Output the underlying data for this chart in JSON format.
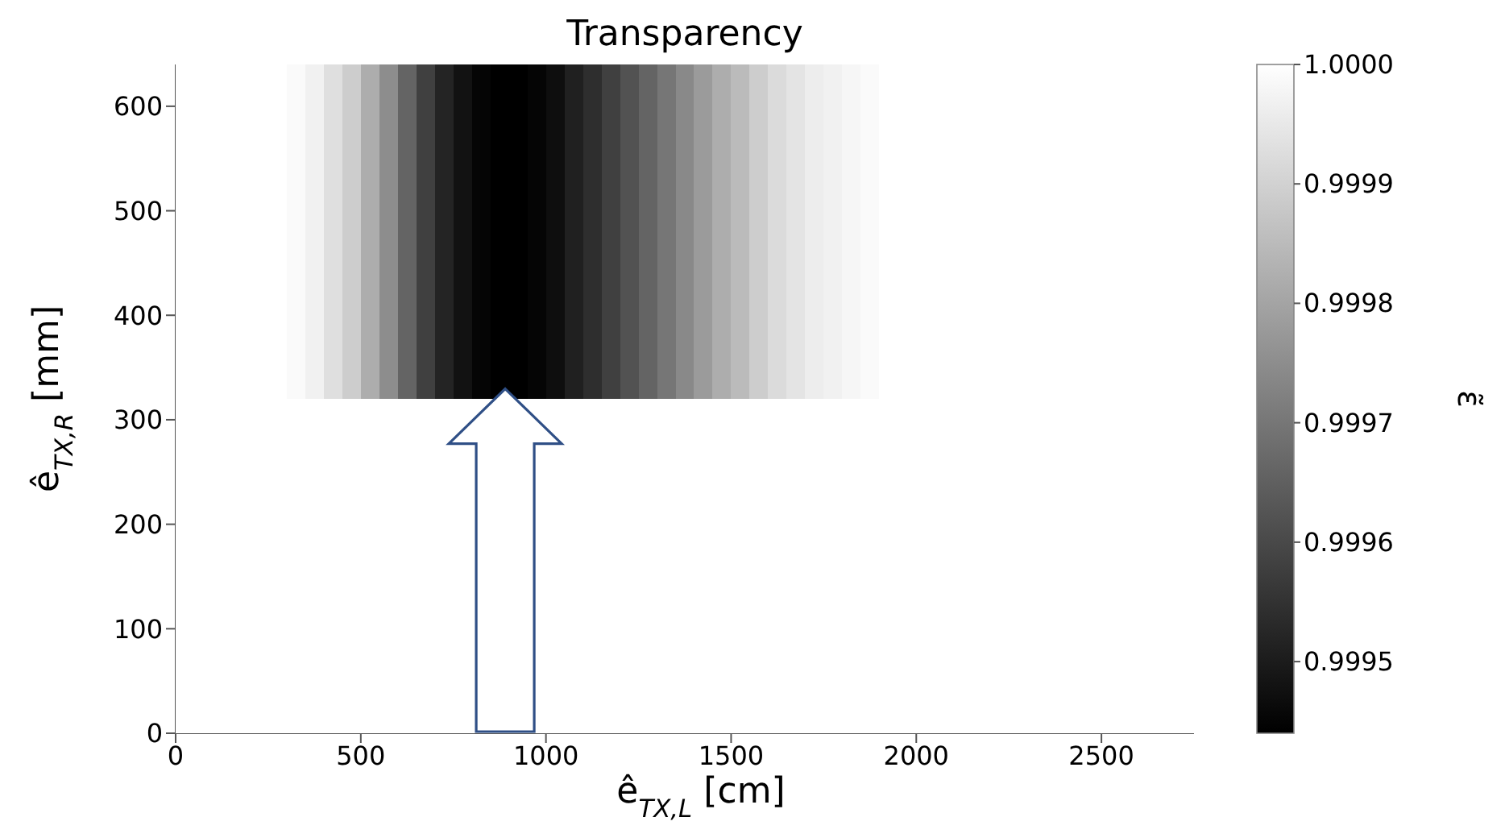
{
  "chart_data": {
    "type": "heatmap",
    "title": "Transparency",
    "xlabel": "ê$_{TX,L}$ [cm]",
    "ylabel": "ê$_{TX,R}$ [mm]",
    "clabel": "ε̃",
    "x": [
      25,
      75,
      125,
      175,
      225,
      275,
      325,
      375,
      425,
      475,
      525,
      575,
      625,
      675,
      725,
      775,
      825,
      875,
      925,
      975,
      1025,
      1075,
      1125,
      1175,
      1225,
      1275,
      1325,
      1375,
      1425,
      1475,
      1525,
      1575,
      1625,
      1675,
      1725,
      1775,
      1825,
      1875,
      1925,
      1975,
      2025,
      2075,
      2125,
      2175,
      2225,
      2275,
      2325,
      2375,
      2425,
      2475,
      2525,
      2575,
      2625,
      2675,
      2725
    ],
    "y": [
      480,
      160
    ],
    "cells": [
      [
        1,
        1,
        1,
        1,
        1,
        1,
        0.99999,
        0.99997,
        0.99993,
        0.99989,
        0.99982,
        0.99975,
        0.99966,
        0.99958,
        0.99952,
        0.99948,
        0.99945,
        0.99944,
        0.99944,
        0.99945,
        0.99947,
        0.99951,
        0.99954,
        0.99958,
        0.99962,
        0.99966,
        0.9997,
        0.99974,
        0.99978,
        0.99982,
        0.99985,
        0.99989,
        0.99992,
        0.99994,
        0.99996,
        0.99997,
        0.99998,
        0.99999,
        1,
        1,
        1,
        1,
        1,
        1,
        1,
        1,
        1,
        1,
        1,
        1,
        1,
        1,
        1,
        1,
        1
      ],
      [
        1,
        1,
        1,
        1,
        1,
        1,
        1,
        1,
        1,
        1,
        1,
        1,
        1,
        1,
        1,
        1,
        1,
        1,
        1,
        1,
        1,
        1,
        1,
        1,
        1,
        1,
        1,
        1,
        1,
        1,
        1,
        1,
        1,
        1,
        1,
        1,
        1,
        1,
        1,
        1,
        1,
        1,
        1,
        1,
        1,
        1,
        1,
        1,
        1,
        1,
        1,
        1,
        1,
        1,
        1
      ]
    ],
    "xlim": [
      0,
      2750
    ],
    "xticks": [
      0,
      500,
      1000,
      1500,
      2000,
      2500
    ],
    "ylim": [
      0,
      640
    ],
    "yticks": [
      0,
      100,
      200,
      300,
      400,
      500,
      600
    ],
    "clim": [
      0.99944,
      1
    ],
    "cticks": [
      0.9995,
      0.9996,
      0.9997,
      0.9998,
      0.9999,
      {
        "value": 1,
        "label": "1.0000"
      }
    ]
  }
}
